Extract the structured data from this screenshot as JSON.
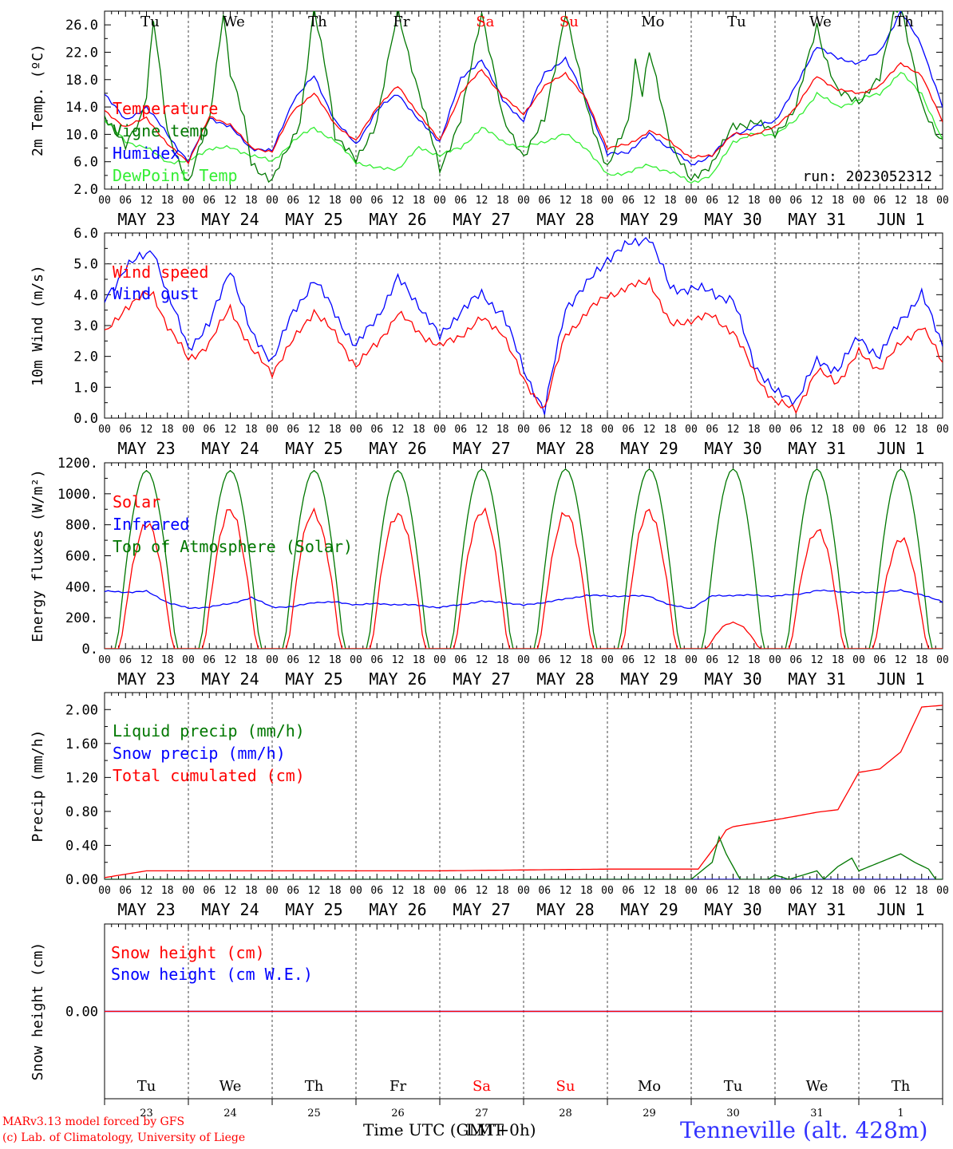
{
  "chart_data": [
    {
      "type": "line",
      "id": "temperature",
      "ylabel": "2m Temp. (ºC)",
      "ylim": [
        2,
        28
      ],
      "yticks": [
        "2.0",
        "6.0",
        "10.0",
        "14.0",
        "18.0",
        "22.0",
        "26.0"
      ],
      "yticks_values": [
        2,
        6,
        10,
        14,
        18,
        22,
        26
      ],
      "x_unit": "hours from 2023-05-23 00 UTC",
      "grid": "vertical dashed at midnights",
      "run_label": "run: 2023052312",
      "legend_position": "left",
      "series": [
        {
          "name": "Temperature",
          "color": "#ff0000",
          "x": [
            0,
            6,
            12,
            18,
            24,
            30,
            36,
            42,
            48,
            54,
            60,
            66,
            72,
            78,
            84,
            90,
            96,
            102,
            108,
            114,
            120,
            126,
            132,
            138,
            144,
            150,
            156,
            162,
            168,
            174,
            180,
            186,
            192,
            198,
            204,
            210,
            216,
            222,
            228,
            234,
            240
          ],
          "y": [
            13.5,
            11,
            12.5,
            8.5,
            6,
            12.5,
            11.5,
            8,
            7.5,
            13.5,
            16,
            11.5,
            9,
            14,
            17,
            13,
            9,
            16,
            19.5,
            15.5,
            13,
            17,
            19,
            15,
            8,
            8.5,
            10.5,
            9,
            6.5,
            7,
            10,
            10,
            11,
            14,
            18.5,
            16.5,
            16,
            17,
            20.5,
            18.5,
            12
          ]
        },
        {
          "name": "Vigne temp",
          "color": "#007700",
          "x": [
            0,
            6,
            10,
            12,
            14,
            18,
            24,
            30,
            34,
            36,
            40,
            42,
            48,
            56,
            60,
            64,
            66,
            72,
            78,
            84,
            90,
            96,
            102,
            108,
            112,
            114,
            120,
            126,
            132,
            138,
            144,
            150,
            152,
            154,
            156,
            162,
            168,
            174,
            180,
            186,
            192,
            198,
            204,
            206,
            210,
            216,
            222,
            226,
            228,
            234,
            240
          ],
          "y": [
            13,
            8,
            12,
            16,
            27,
            10,
            3,
            12,
            28,
            19,
            12,
            6,
            3,
            12,
            28,
            18,
            10,
            6,
            12,
            28,
            16,
            5,
            12,
            28,
            18,
            12,
            7,
            12,
            28,
            14,
            5,
            12,
            21,
            16,
            22,
            9,
            3,
            6,
            11,
            12,
            10,
            14,
            26,
            22,
            16,
            15,
            18,
            28,
            29,
            14,
            9
          ]
        },
        {
          "name": "Humidex",
          "color": "#0000ff",
          "x": [
            0,
            6,
            12,
            18,
            24,
            30,
            36,
            42,
            48,
            54,
            60,
            66,
            72,
            78,
            84,
            90,
            96,
            102,
            108,
            114,
            120,
            126,
            132,
            138,
            144,
            150,
            156,
            162,
            168,
            174,
            180,
            186,
            192,
            198,
            204,
            210,
            216,
            222,
            228,
            234,
            240
          ],
          "y": [
            16,
            12,
            14,
            10,
            6,
            12.5,
            11,
            8,
            7.5,
            15,
            18.5,
            12,
            8.5,
            13.5,
            16,
            12,
            9,
            18,
            21,
            15,
            12,
            19,
            21,
            15,
            7,
            7.5,
            10,
            8,
            5.5,
            7,
            10,
            11,
            12,
            17,
            23,
            21,
            20.5,
            22,
            28,
            23,
            14
          ]
        },
        {
          "name": "DewPoint Temp",
          "color": "#33ee33",
          "x": [
            0,
            6,
            12,
            18,
            24,
            30,
            36,
            42,
            48,
            54,
            60,
            66,
            72,
            78,
            84,
            90,
            96,
            102,
            108,
            114,
            120,
            126,
            132,
            138,
            144,
            150,
            156,
            162,
            168,
            174,
            180,
            186,
            192,
            198,
            204,
            210,
            216,
            222,
            228,
            234,
            240
          ],
          "y": [
            12,
            9,
            8,
            6,
            6,
            8,
            8,
            7,
            6,
            9,
            11,
            9,
            6,
            5,
            5,
            8,
            7,
            8,
            11,
            9,
            8,
            9,
            10,
            8,
            4,
            4.5,
            5.5,
            4.5,
            3,
            4,
            9,
            10,
            10,
            12,
            16,
            14,
            15,
            16,
            19,
            16,
            9
          ]
        }
      ]
    },
    {
      "type": "line",
      "id": "wind",
      "ylabel": "10m Wind (m/s)",
      "ylim": [
        0,
        6
      ],
      "yticks": [
        "0.0",
        "1.0",
        "2.0",
        "3.0",
        "4.0",
        "5.0",
        "6.0"
      ],
      "yticks_values": [
        0,
        1,
        2,
        3,
        4,
        5,
        6
      ],
      "reference_line": 5,
      "series": [
        {
          "name": "Wind speed",
          "color": "#ff0000",
          "x": [
            0,
            6,
            12,
            14,
            18,
            24,
            30,
            36,
            42,
            48,
            54,
            60,
            66,
            72,
            78,
            84,
            90,
            96,
            102,
            108,
            114,
            120,
            126,
            132,
            138,
            144,
            150,
            156,
            162,
            168,
            174,
            180,
            186,
            192,
            198,
            204,
            210,
            216,
            222,
            228,
            234,
            240
          ],
          "y": [
            2.7,
            3.6,
            4,
            4,
            3,
            1.9,
            2.4,
            3.6,
            2.2,
            1.5,
            2.5,
            3.5,
            2.7,
            1.7,
            2.4,
            3.4,
            2.8,
            2.3,
            2.7,
            3.2,
            2.8,
            1.2,
            0.3,
            2.7,
            3.4,
            4,
            4.2,
            4.5,
            3,
            3.2,
            3.3,
            2.8,
            1.5,
            0.5,
            0.3,
            1.5,
            1.2,
            2.1,
            1.6,
            2.4,
            3,
            1.8
          ]
        },
        {
          "name": "Wind gust",
          "color": "#0000ff",
          "x": [
            0,
            6,
            12,
            14,
            18,
            24,
            30,
            36,
            42,
            48,
            54,
            60,
            66,
            72,
            78,
            84,
            90,
            96,
            102,
            108,
            114,
            120,
            126,
            132,
            138,
            144,
            150,
            156,
            162,
            168,
            174,
            180,
            186,
            192,
            198,
            204,
            210,
            216,
            222,
            228,
            234,
            240
          ],
          "y": [
            3.8,
            4.9,
            5.3,
            5.5,
            4,
            2.3,
            3,
            4.9,
            2.7,
            1.9,
            3.4,
            4.5,
            3.4,
            2.3,
            3.3,
            4.5,
            3.7,
            2.6,
            3.5,
            4,
            3.4,
            1.6,
            0.2,
            3.6,
            4.3,
            5.2,
            5.6,
            5.9,
            4.2,
            4.2,
            4.1,
            3.8,
            1.8,
            0.8,
            0.6,
            1.8,
            1.6,
            2.6,
            2,
            3.2,
            4,
            2.4
          ]
        }
      ]
    },
    {
      "type": "line",
      "id": "energy",
      "ylabel": "Energy fluxes (W/m²)",
      "ylim": [
        0,
        1200
      ],
      "yticks": [
        "0.",
        "200.",
        "400.",
        "600.",
        "800.",
        "1000.",
        "1200."
      ],
      "yticks_values": [
        0,
        200,
        400,
        600,
        800,
        1000,
        1200
      ],
      "series": [
        {
          "name": "Solar",
          "color": "#ff0000",
          "daily_peak_hour": 12,
          "daily_peaks": [
            800,
            880,
            880,
            880,
            890,
            860,
            880,
            170,
            770,
            700
          ]
        },
        {
          "name": "Infrared",
          "color": "#0000ff",
          "x": [
            0,
            6,
            12,
            18,
            24,
            30,
            36,
            42,
            48,
            54,
            60,
            66,
            72,
            78,
            84,
            90,
            96,
            102,
            108,
            114,
            120,
            126,
            132,
            138,
            144,
            150,
            156,
            162,
            168,
            174,
            180,
            186,
            192,
            198,
            204,
            210,
            216,
            222,
            228,
            234,
            240
          ],
          "y": [
            370,
            365,
            370,
            300,
            260,
            270,
            290,
            330,
            270,
            270,
            300,
            300,
            285,
            290,
            285,
            280,
            265,
            285,
            305,
            300,
            280,
            300,
            320,
            345,
            340,
            340,
            340,
            280,
            260,
            340,
            345,
            345,
            340,
            350,
            375,
            370,
            360,
            365,
            375,
            350,
            300
          ]
        },
        {
          "name": "Top of Atmosphere (Solar)",
          "color": "#007700",
          "daily_peak_hour": 12,
          "daily_peaks": [
            1150,
            1150,
            1150,
            1150,
            1160,
            1160,
            1160,
            1160,
            1160,
            1160
          ]
        }
      ]
    },
    {
      "type": "line",
      "id": "precip",
      "ylabel": "Precip (mm/h)",
      "ylim": [
        0,
        2.2
      ],
      "yticks": [
        "0.00",
        "0.40",
        "0.80",
        "1.20",
        "1.60",
        "2.00"
      ],
      "yticks_values": [
        0,
        0.4,
        0.8,
        1.2,
        1.6,
        2.0
      ],
      "series": [
        {
          "name": "Liquid precip (mm/h)",
          "color": "#007700",
          "x": [
            0,
            10,
            168,
            174,
            176,
            178,
            182,
            190,
            192,
            196,
            204,
            206,
            210,
            214,
            216,
            222,
            228,
            232,
            236,
            238,
            240
          ],
          "y": [
            0,
            0,
            0,
            0.2,
            0.5,
            0.3,
            0,
            0,
            0.05,
            0,
            0.1,
            0,
            0.15,
            0.25,
            0.1,
            0.2,
            0.3,
            0.2,
            0.12,
            0,
            0
          ]
        },
        {
          "name": "Snow precip (mm/h)",
          "color": "#0000ff",
          "x": [
            0,
            240
          ],
          "y": [
            0,
            0
          ]
        },
        {
          "name": "Total cumulated (cm)",
          "color": "#ff0000",
          "x": [
            0,
            12,
            36,
            96,
            144,
            170,
            176,
            178,
            180,
            186,
            192,
            204,
            210,
            216,
            222,
            228,
            234,
            240
          ],
          "y": [
            0.02,
            0.1,
            0.1,
            0.1,
            0.12,
            0.12,
            0.45,
            0.58,
            0.62,
            0.66,
            0.7,
            0.79,
            0.82,
            1.26,
            1.3,
            1.5,
            2.03,
            2.05
          ]
        }
      ]
    },
    {
      "type": "line",
      "id": "snow",
      "ylabel": "Snow height (cm)",
      "ylim": [
        -1,
        1
      ],
      "yticks": [
        "0.00"
      ],
      "yticks_values": [
        0
      ],
      "series": [
        {
          "name": "Snow height (cm)",
          "color": "#ff0000",
          "x": [
            0,
            240
          ],
          "y": [
            0,
            0
          ]
        },
        {
          "name": "Snow height (cm W.E.)",
          "color": "#0000ff",
          "x": [
            0,
            240
          ],
          "y": [
            0,
            0
          ]
        }
      ]
    }
  ],
  "axis": {
    "hour_ticks": [
      "00",
      "06",
      "12",
      "18"
    ],
    "last_tick": "00",
    "dates": [
      "MAY 23",
      "MAY 24",
      "MAY 25",
      "MAY 26",
      "MAY 27",
      "MAY 28",
      "MAY 29",
      "MAY 30",
      "MAY 31",
      "JUN  1"
    ],
    "days": [
      {
        "label": "Tu",
        "color": "#000000",
        "num": "23"
      },
      {
        "label": "We",
        "color": "#000000",
        "num": "24"
      },
      {
        "label": "Th",
        "color": "#000000",
        "num": "25"
      },
      {
        "label": "Fr",
        "color": "#000000",
        "num": "26"
      },
      {
        "label": "Sa",
        "color": "#ff0000",
        "num": "27"
      },
      {
        "label": "Su",
        "color": "#ff0000",
        "num": "28"
      },
      {
        "label": "Mo",
        "color": "#000000",
        "num": "29"
      },
      {
        "label": "Tu",
        "color": "#000000",
        "num": "30"
      },
      {
        "label": "We",
        "color": "#000000",
        "num": "31"
      },
      {
        "label": "Th",
        "color": "#000000",
        "num": "1"
      }
    ],
    "xlabel": "Time UTC (GMT+0h)",
    "xlabel_overlay": "LMT"
  },
  "footer": {
    "credit_line1": "MARv3.13 model forced by GFS",
    "credit_line2": "(c) Lab. of Climatology, University of Liege",
    "station": "Tenneville (alt. 428m)",
    "credit_color": "#ff0000",
    "station_color": "#3333ff"
  }
}
